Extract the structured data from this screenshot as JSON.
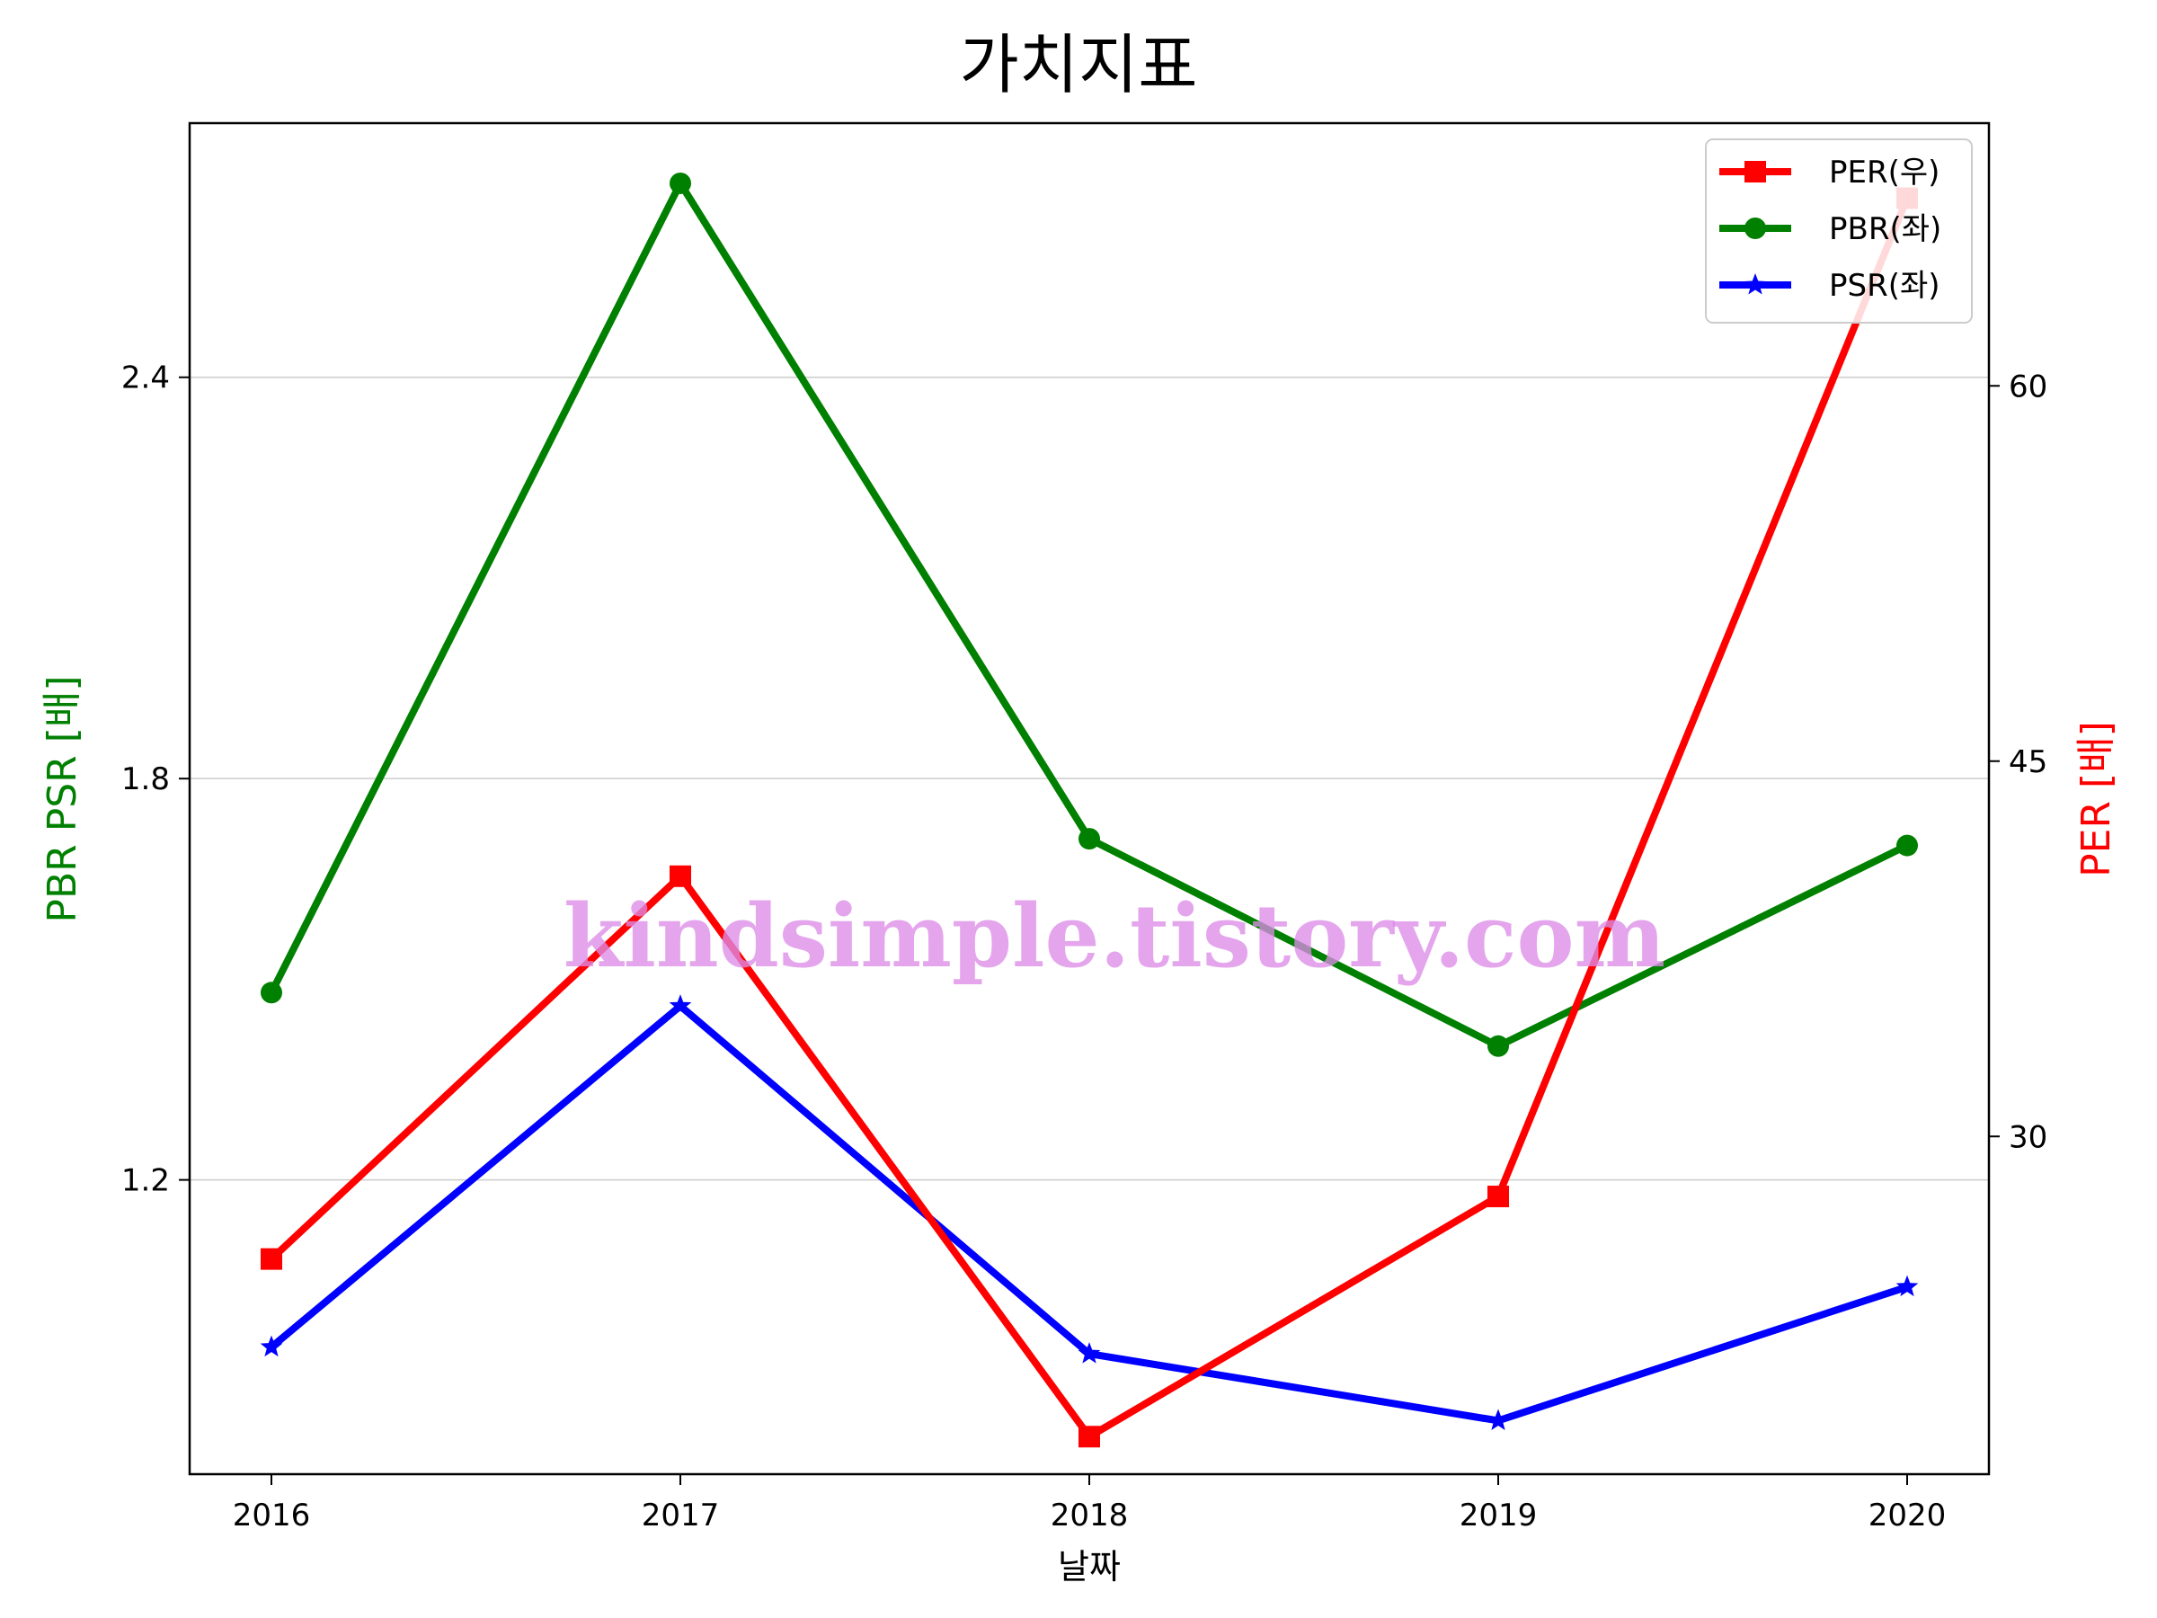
{
  "chart_data": {
    "type": "line",
    "title": "가치지표",
    "xlabel": "날짜",
    "ylabel_left": "PBR PSR [배]",
    "ylabel_right": "PER [배]",
    "ylabel_left_color": "#008000",
    "ylabel_right_color": "#ff0000",
    "categories": [
      "2016",
      "2017",
      "2018",
      "2019",
      "2020"
    ],
    "xlim": [
      2015.8,
      2020.2
    ],
    "ylim_left": [
      0.76,
      2.78
    ],
    "ylim_right": [
      16.5,
      70.5
    ],
    "left_ticks": [
      "1.2",
      "1.8",
      "2.4"
    ],
    "right_ticks": [
      "30",
      "45",
      "60"
    ],
    "grid": "horizontal (left axis)",
    "legend_position": "top-right",
    "series": [
      {
        "name": "PER(우)",
        "axis": "right",
        "color": "#ff0000",
        "marker": "square",
        "values": [
          25.1,
          40.4,
          18.0,
          27.6,
          67.5
        ]
      },
      {
        "name": "PBR(좌)",
        "axis": "left",
        "color": "#008000",
        "marker": "circle",
        "values": [
          1.48,
          2.69,
          1.71,
          1.4,
          1.7
        ]
      },
      {
        "name": "PSR(좌)",
        "axis": "left",
        "color": "#0000ff",
        "marker": "star",
        "values": [
          0.95,
          1.46,
          0.94,
          0.84,
          1.04
        ]
      }
    ],
    "watermark": "kindsimple.tistory.com"
  }
}
